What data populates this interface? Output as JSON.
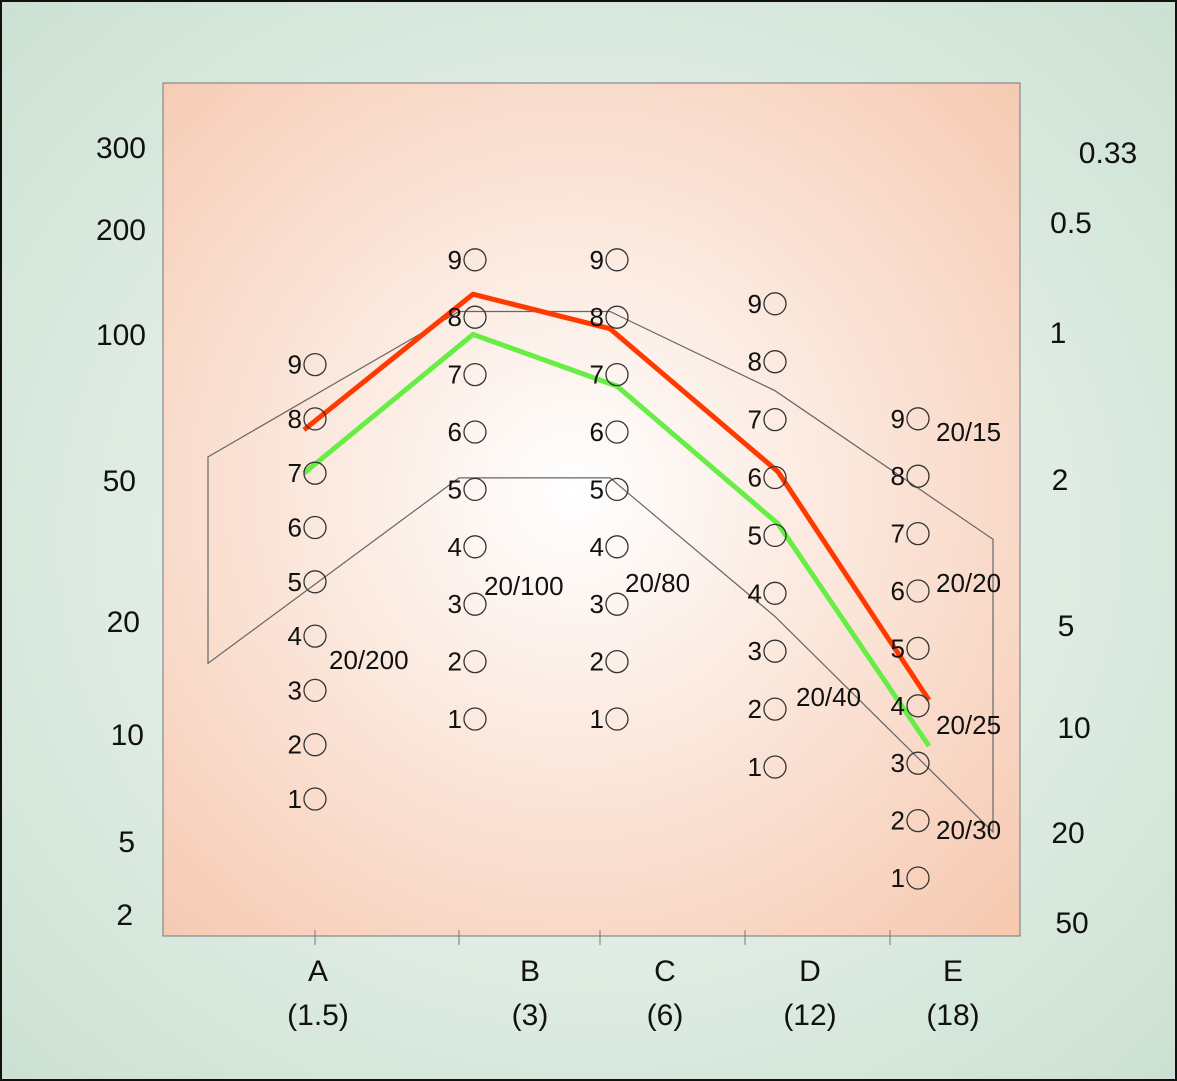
{
  "chart_data": {
    "type": "line",
    "title": "",
    "xlabel": "",
    "ylabel": "",
    "categories": [
      {
        "letter": "A",
        "value": "(1.5)"
      },
      {
        "letter": "B",
        "value": "(3)"
      },
      {
        "letter": "C",
        "value": "(6)"
      },
      {
        "letter": "D",
        "value": "(12)"
      },
      {
        "letter": "E",
        "value": "(18)"
      }
    ],
    "left_axis_ticks": [
      "300",
      "200",
      "100",
      "50",
      "20",
      "10",
      "5",
      "2"
    ],
    "right_axis_ticks": [
      "0.33",
      "0.5",
      "1",
      "2",
      "5",
      "10",
      "20",
      "50"
    ],
    "row_numbers": [
      "1",
      "2",
      "3",
      "4",
      "5",
      "6",
      "7",
      "8",
      "9"
    ],
    "acuity_labels": [
      {
        "column": "A",
        "text": "20/200"
      },
      {
        "column": "B",
        "text": "20/100"
      },
      {
        "column": "C",
        "text": "20/80"
      },
      {
        "column": "D",
        "text": "20/40"
      },
      {
        "column": "E",
        "text": "20/15"
      },
      {
        "column": "E",
        "text": "20/20"
      },
      {
        "column": "E",
        "text": "20/25"
      },
      {
        "column": "E",
        "text": "20/30"
      }
    ],
    "series": [
      {
        "color": "#ff3a00",
        "values": [
          7.8,
          8.4,
          7.8,
          6.1,
          4.1
        ]
      },
      {
        "color": "#66ee44",
        "values": [
          7.0,
          7.7,
          6.8,
          5.2,
          3.3
        ]
      }
    ],
    "normal_band": {
      "upper": [
        7.3,
        8.1,
        8.1,
        7.5,
        6.9
      ],
      "lower": [
        3.5,
        5.2,
        5.2,
        3.6,
        1.8
      ]
    },
    "colors": {
      "plot_bg_center": "#ffffff",
      "plot_bg_edge": "#f6c9b0",
      "page_bg_edge": "#c9dfd0",
      "page_bg_center": "#f7fbf8",
      "band_line": "#666666",
      "circle_stroke": "#333333"
    }
  }
}
